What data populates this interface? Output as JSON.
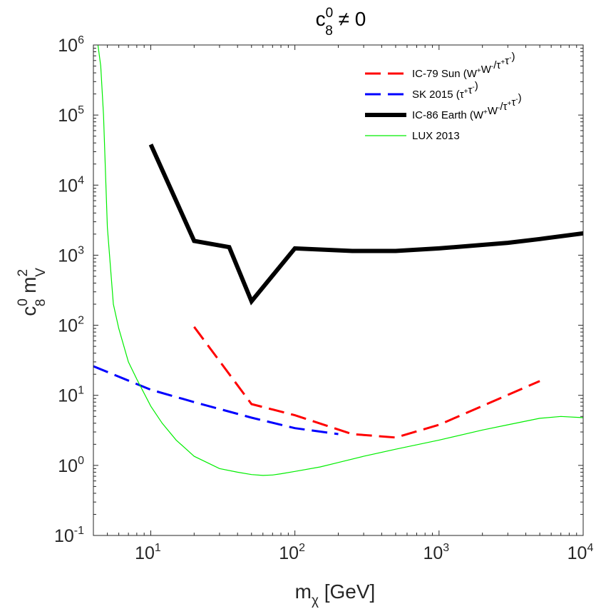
{
  "chart_data": {
    "type": "line",
    "title": "c₈⁰ ≠ 0",
    "title_parts": {
      "base": "c",
      "sup": "0",
      "sub": "8",
      "rest": " ≠ 0"
    },
    "xlabel": "m_χ [GeV]",
    "xlabel_parts": {
      "base": "m",
      "sub": "χ",
      "rest": " [GeV]"
    },
    "ylabel": "c₈⁰ m_V²",
    "ylabel_parts": {
      "c": "c",
      "c_sup": "0",
      "c_sub": "8",
      "m": " m",
      "m_sup": "2",
      "m_sub": "V"
    },
    "xscale": "log",
    "yscale": "log",
    "xlim": [
      4,
      10000
    ],
    "ylim": [
      0.1,
      1000000
    ],
    "x_ticks": [
      {
        "value": 10,
        "base": "10",
        "exp": "1"
      },
      {
        "value": 100,
        "base": "10",
        "exp": "2"
      },
      {
        "value": 1000,
        "base": "10",
        "exp": "3"
      },
      {
        "value": 10000,
        "base": "10",
        "exp": "4"
      }
    ],
    "y_ticks": [
      {
        "value": 0.1,
        "base": "10",
        "exp": "-1"
      },
      {
        "value": 1,
        "base": "10",
        "exp": "0"
      },
      {
        "value": 10,
        "base": "10",
        "exp": "1"
      },
      {
        "value": 100,
        "base": "10",
        "exp": "2"
      },
      {
        "value": 1000,
        "base": "10",
        "exp": "3"
      },
      {
        "value": 10000,
        "base": "10",
        "exp": "4"
      },
      {
        "value": 100000,
        "base": "10",
        "exp": "5"
      },
      {
        "value": 1000000,
        "base": "10",
        "exp": "6"
      }
    ],
    "legend_position": "top-right",
    "series": [
      {
        "name": "IC-79 Sun (W⁺W⁻/τ⁺τ⁻)",
        "label_parts": [
          "IC-79 Sun (W",
          {
            "sup": "+"
          },
          "W",
          {
            "sup": "-"
          },
          "/τ",
          {
            "sup": "+"
          },
          "τ",
          {
            "sup": "-"
          },
          ")"
        ],
        "color": "#ff0000",
        "style": "dashed",
        "width": 3,
        "x": [
          20,
          50,
          100,
          250,
          500,
          1000,
          5000
        ],
        "y": [
          95,
          7.5,
          5.2,
          2.8,
          2.5,
          3.8,
          16
        ]
      },
      {
        "name": "SK 2015 (τ⁺τ⁻)",
        "label_parts": [
          "SK 2015 (τ",
          {
            "sup": "+"
          },
          "τ",
          {
            "sup": "-"
          },
          ")"
        ],
        "color": "#0000ff",
        "style": "dashed",
        "width": 3,
        "x": [
          4,
          10,
          20,
          50,
          100,
          200
        ],
        "y": [
          26,
          12,
          8,
          4.8,
          3.4,
          2.8
        ]
      },
      {
        "name": "IC-86 Earth (W⁺W⁻/τ⁺τ⁻)",
        "label_parts": [
          "IC-86 Earth (W",
          {
            "sup": "+"
          },
          "W",
          {
            "sup": "-"
          },
          "/τ",
          {
            "sup": "+"
          },
          "τ",
          {
            "sup": "-"
          },
          ")"
        ],
        "color": "#000000",
        "style": "solid",
        "width": 6,
        "x": [
          10,
          20,
          35,
          50,
          100,
          250,
          500,
          1000,
          3000,
          5000,
          10000
        ],
        "y": [
          38000,
          1600,
          1300,
          220,
          1250,
          1150,
          1150,
          1250,
          1500,
          1700,
          2050
        ]
      },
      {
        "name": "LUX 2013",
        "label_parts": [
          "LUX 2013"
        ],
        "color": "#00ee00",
        "style": "solid",
        "width": 1.2,
        "x": [
          4.3,
          4.5,
          4.7,
          5,
          5.5,
          6,
          7,
          8,
          10,
          12,
          15,
          20,
          30,
          40,
          50,
          60,
          70,
          80,
          100,
          150,
          200,
          300,
          500,
          1000,
          2000,
          3000,
          5000,
          7000,
          10000
        ],
        "y": [
          1000000,
          500000,
          100000,
          2500,
          200,
          90,
          30,
          17,
          7,
          4,
          2.3,
          1.35,
          0.9,
          0.8,
          0.74,
          0.72,
          0.73,
          0.76,
          0.82,
          0.95,
          1.1,
          1.35,
          1.7,
          2.3,
          3.2,
          3.8,
          4.7,
          5.0,
          4.8
        ]
      }
    ]
  }
}
